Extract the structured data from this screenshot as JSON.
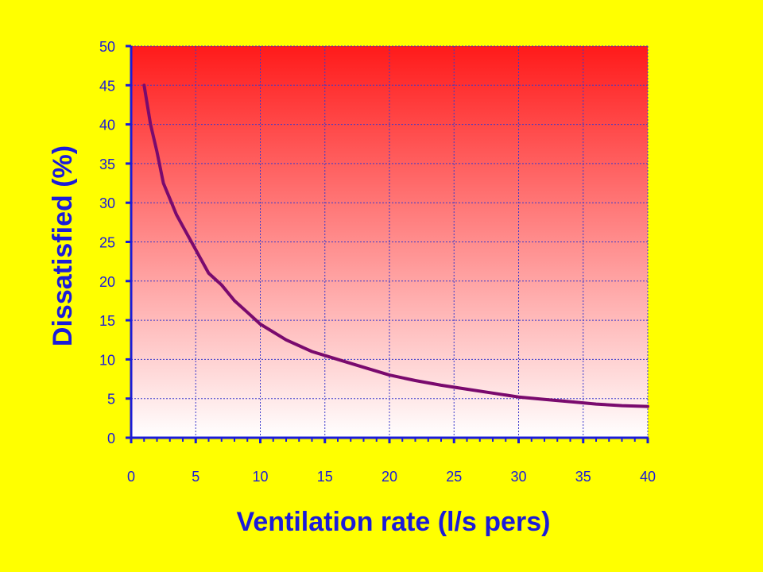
{
  "chart_data": {
    "type": "line",
    "title": "",
    "xlabel": "Ventilation rate  (l/s pers)",
    "ylabel": "Dissatisfied  (%)",
    "xlim": [
      0,
      40
    ],
    "ylim": [
      0,
      50
    ],
    "x_ticks": [
      "0",
      "5",
      "10",
      "15",
      "20",
      "25",
      "30",
      "35",
      "40"
    ],
    "y_ticks": [
      "0",
      "5",
      "10",
      "15",
      "20",
      "25",
      "30",
      "35",
      "40",
      "45",
      "50"
    ],
    "grid": true,
    "background_gradient": [
      "#ff1a1a",
      "#ffffff"
    ],
    "series": [
      {
        "color": "#7a0a6e",
        "x": [
          1,
          1.5,
          2,
          2.5,
          3,
          3.5,
          4,
          5,
          6,
          7,
          8,
          9,
          10,
          12,
          14,
          16,
          18,
          20,
          22,
          24,
          26,
          28,
          30,
          32,
          34,
          36,
          38,
          40
        ],
        "y": [
          45,
          40,
          36.5,
          32.5,
          30.5,
          28.5,
          27,
          24,
          21,
          19.5,
          17.5,
          16,
          14.5,
          12.5,
          11,
          10,
          9,
          8,
          7.3,
          6.7,
          6.2,
          5.7,
          5.2,
          4.9,
          4.6,
          4.3,
          4.1,
          4.0
        ]
      }
    ]
  }
}
